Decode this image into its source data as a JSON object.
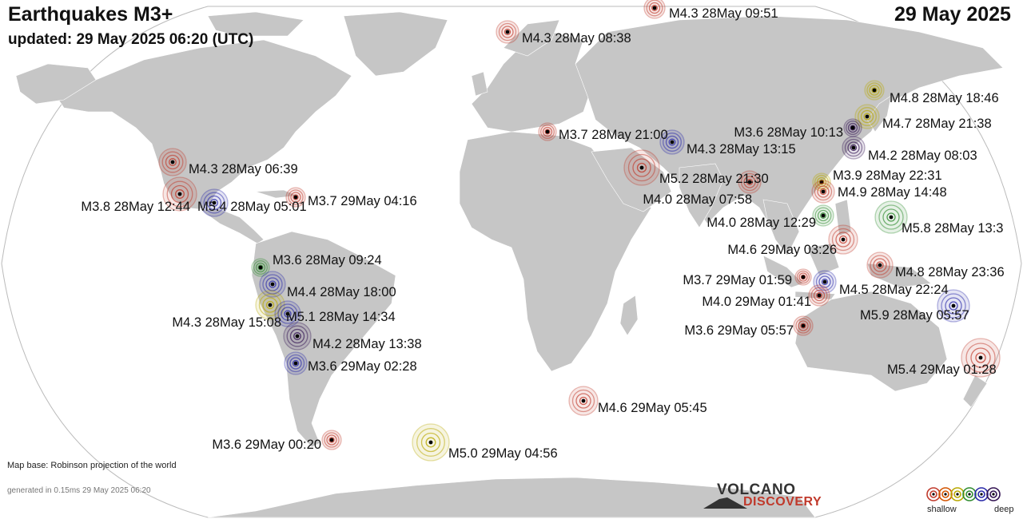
{
  "header": {
    "title": "Earthquakes M3+",
    "updated": "updated: 29 May 2025 06:20 (UTC)",
    "date": "29 May 2025"
  },
  "footer": {
    "map_base": "Map base: Robinson projection of the world",
    "generated": "generated in 0.15ms 29 May 2025 06:20"
  },
  "logo": {
    "line1": "VOLCANO",
    "line2": "DISCOVERY"
  },
  "legend": {
    "shallow": "shallow",
    "deep": "deep",
    "colors": [
      "#c0392b",
      "#d35400",
      "#b8a800",
      "#2e8b2e",
      "#2828a8",
      "#301050"
    ]
  },
  "colors": {
    "land": "#c6c6c6",
    "ocean": "#ffffff",
    "outline": "#bbbbbb"
  },
  "earthquakes": [
    {
      "label": "M4.3 28May 09:51",
      "color": "#c0392b"
    },
    {
      "label": "M4.3 28May 08:38",
      "color": "#c0392b"
    },
    {
      "label": "M4.8 28May 18:46",
      "color": "#b8a800"
    },
    {
      "label": "M4.7 28May 21:38",
      "color": "#b8a800"
    },
    {
      "label": "M3.6 28May 10:13",
      "color": "#301050"
    },
    {
      "label": "M4.2 28May 08:03",
      "color": "#301050"
    },
    {
      "label": "M3.7 28May 21:00",
      "color": "#c0392b"
    },
    {
      "label": "M4.3 28May 13:15",
      "color": "#2828a8"
    },
    {
      "label": "M3.9 28May 22:31",
      "color": "#b8a800"
    },
    {
      "label": "M4.9 28May 14:48",
      "color": "#c0392b"
    },
    {
      "label": "M5.2 28May 21:30",
      "color": "#c0392b"
    },
    {
      "label": "M4.0 28May 07:58",
      "color": "#c0392b"
    },
    {
      "label": "M4.0 28May 12:29",
      "color": "#2e8b2e"
    },
    {
      "label": "M5.8 28May 13:3",
      "color": "#2e8b2e"
    },
    {
      "label": "M4.6 29May 03:26",
      "color": "#c0392b"
    },
    {
      "label": "M4.8 28May 23:36",
      "color": "#c0392b"
    },
    {
      "label": "M3.7 29May 01:59",
      "color": "#c0392b"
    },
    {
      "label": "M4.5 28May 22:24",
      "color": "#2828a8"
    },
    {
      "label": "M4.0 29May 01:41",
      "color": "#c0392b"
    },
    {
      "label": "M5.9 28May 05:57",
      "color": "#2828a8"
    },
    {
      "label": "M3.6 29May 05:57",
      "color": "#c0392b"
    },
    {
      "label": "M5.4 29May 01:28",
      "color": "#c0392b"
    },
    {
      "label": "M4.3 28May 06:39",
      "color": "#c0392b"
    },
    {
      "label": "M3.8 28May 12:44",
      "color": "#c0392b"
    },
    {
      "label": "M5.4 28May 05:01",
      "color": "#2828a8"
    },
    {
      "label": "M3.7 29May 04:16",
      "color": "#c0392b"
    },
    {
      "label": "M3.6 28May 09:24",
      "color": "#2e8b2e"
    },
    {
      "label": "M4.4 28May 18:00",
      "color": "#2828a8"
    },
    {
      "label": "M4.3 28May 15:08",
      "color": "#b8a800"
    },
    {
      "label": "M5.1 28May 14:34",
      "color": "#2828a8"
    },
    {
      "label": "M4.2 28May 13:38",
      "color": "#301050"
    },
    {
      "label": "M3.6 29May 02:28",
      "color": "#2828a8"
    },
    {
      "label": "M4.6 29May 05:45",
      "color": "#c0392b"
    },
    {
      "label": "M3.6 29May 00:20",
      "color": "#c0392b"
    },
    {
      "label": "M5.0 29May 04:56",
      "color": "#b8a800"
    }
  ]
}
